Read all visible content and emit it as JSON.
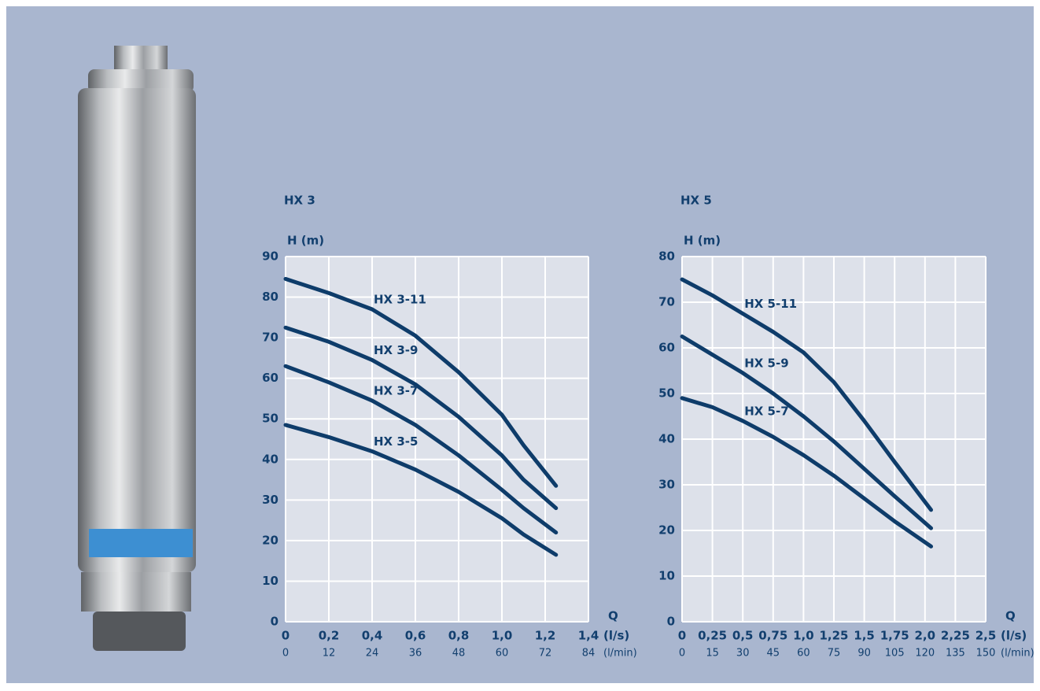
{
  "chart_data": [
    {
      "type": "line",
      "title": "HX 3",
      "y_label": "H (m)",
      "x_label": "Q",
      "x_unit": "(l/s)",
      "x2_unit": "(l/min)",
      "x": [
        0,
        0.2,
        0.4,
        0.6,
        0.8,
        1.0,
        1.1,
        1.25
      ],
      "series": [
        {
          "name": "HX 3-11",
          "color": "#0e3c6a",
          "values": [
            84.5,
            81,
            77,
            70.5,
            61.5,
            51,
            43.5,
            33.5
          ]
        },
        {
          "name": "HX 3-9",
          "color": "#0e3c6a",
          "values": [
            72.5,
            69,
            64.5,
            58.5,
            50.5,
            41,
            35,
            28
          ]
        },
        {
          "name": "HX 3-7",
          "color": "#0e3c6a",
          "values": [
            63,
            59,
            54.5,
            48.5,
            41,
            32.5,
            28,
            22
          ]
        },
        {
          "name": "HX 3-5",
          "color": "#0e3c6a",
          "values": [
            48.5,
            45.5,
            42,
            37.5,
            32,
            25.5,
            21.5,
            16.5
          ]
        }
      ],
      "xlim": [
        0,
        1.4
      ],
      "xticks": [
        0,
        {
          "value": 0.2,
          "label": "0,2"
        },
        {
          "value": 0.4,
          "label": "0,4"
        },
        {
          "value": 0.6,
          "label": "0,6"
        },
        {
          "value": 0.8,
          "label": "0,8"
        },
        {
          "value": 1.0,
          "label": "1,0"
        },
        {
          "value": 1.2,
          "label": "1,2"
        },
        {
          "value": 1.4,
          "label": "1,4"
        }
      ],
      "x2lim": [
        0,
        84
      ],
      "x2ticks": [
        0,
        12,
        24,
        36,
        48,
        60,
        72,
        84
      ],
      "ylim": [
        0,
        90
      ],
      "yticks": [
        0,
        10,
        20,
        30,
        40,
        50,
        60,
        70,
        80,
        90
      ],
      "grid": true
    },
    {
      "type": "line",
      "title": "HX 5",
      "y_label": "H (m)",
      "x_label": "Q",
      "x_unit": "(l/s)",
      "x2_unit": "(l/min)",
      "x": [
        0,
        0.25,
        0.5,
        0.75,
        1.0,
        1.25,
        1.5,
        1.75,
        2.05
      ],
      "series": [
        {
          "name": "HX 5-11",
          "color": "#0e3c6a",
          "values": [
            75,
            71.5,
            67.5,
            63.5,
            59,
            52.5,
            44,
            35,
            24.5
          ]
        },
        {
          "name": "HX 5-9",
          "color": "#0e3c6a",
          "values": [
            62.5,
            58.5,
            54.5,
            50,
            45,
            39.5,
            33.5,
            27.5,
            20.5
          ]
        },
        {
          "name": "HX 5-7",
          "color": "#0e3c6a",
          "values": [
            49,
            47,
            44,
            40.5,
            36.5,
            32,
            27,
            22,
            16.5
          ]
        }
      ],
      "xlim": [
        0,
        2.5
      ],
      "xticks": [
        0,
        {
          "value": 0.25,
          "label": "0,25"
        },
        {
          "value": 0.5,
          "label": "0,5"
        },
        {
          "value": 0.75,
          "label": "0,75"
        },
        {
          "value": 1.0,
          "label": "1,0"
        },
        {
          "value": 1.25,
          "label": "1,25"
        },
        {
          "value": 1.5,
          "label": "1,5"
        },
        {
          "value": 1.75,
          "label": "1,75"
        },
        {
          "value": 2.0,
          "label": "2,0"
        },
        {
          "value": 2.25,
          "label": "2,25"
        },
        {
          "value": 2.5,
          "label": "2,5"
        }
      ],
      "x2lim": [
        0,
        150
      ],
      "x2ticks": [
        0,
        15,
        30,
        45,
        60,
        75,
        90,
        105,
        120,
        135,
        150
      ],
      "ylim": [
        0,
        80
      ],
      "yticks": [
        0,
        10,
        20,
        30,
        40,
        50,
        60,
        70,
        80
      ],
      "grid": true
    }
  ]
}
